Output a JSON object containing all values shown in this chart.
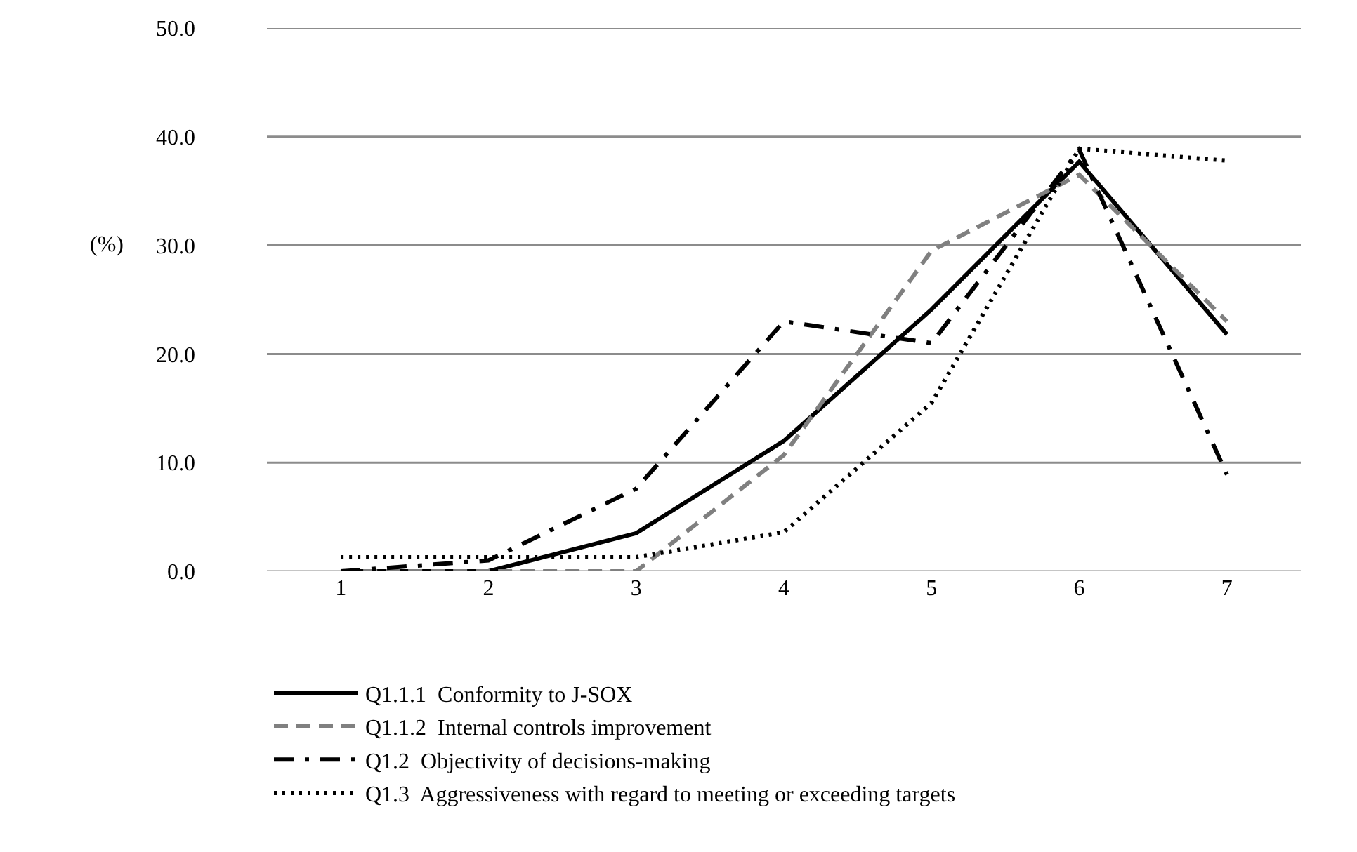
{
  "chart_data": {
    "type": "line",
    "ylabel": "(%)",
    "categories": [
      "1",
      "2",
      "3",
      "4",
      "5",
      "6",
      "7"
    ],
    "ylim": [
      0,
      50
    ],
    "yticks": [
      {
        "value": 0,
        "label": "0.0"
      },
      {
        "value": 10,
        "label": "10.0"
      },
      {
        "value": 20,
        "label": "20.0"
      },
      {
        "value": 30,
        "label": "30.0"
      },
      {
        "value": 40,
        "label": "40.0"
      },
      {
        "value": 50,
        "label": "50.0"
      }
    ],
    "grid": "y",
    "legend": "bottom",
    "marker": "none",
    "series": [
      {
        "name": "Q1.1.1  Conformity to J-SOX",
        "color": "#000000",
        "line_style": "solid",
        "values": [
          0,
          0,
          3.5,
          12.0,
          24.1,
          37.7,
          21.8
        ]
      },
      {
        "name": "Q1.1.2  Internal controls improvement",
        "color": "#808080",
        "line_style": "dashed",
        "values": [
          0,
          0,
          0,
          10.7,
          29.5,
          36.5,
          23.0
        ]
      },
      {
        "name": "Q1.2  Objectivity of decisions-making",
        "color": "#000000",
        "line_style": "dashdot",
        "values": [
          0,
          1.0,
          7.6,
          23.0,
          21.0,
          38.8,
          8.9
        ]
      },
      {
        "name": "Q1.3  Aggressiveness with regard to meeting or exceeding targets",
        "color": "#000000",
        "line_style": "dotted",
        "values": [
          1.3,
          1.3,
          1.3,
          3.6,
          15.5,
          38.9,
          37.8
        ]
      }
    ]
  }
}
